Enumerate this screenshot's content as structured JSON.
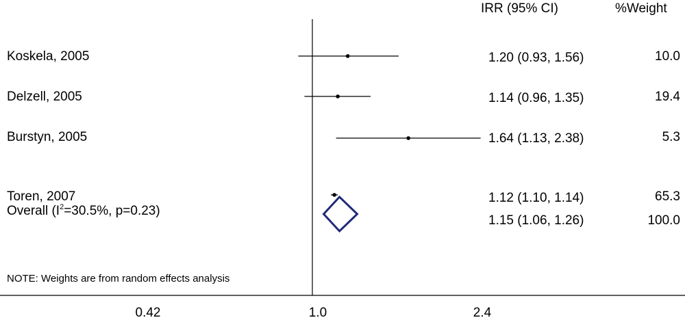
{
  "chart_data": {
    "type": "forest",
    "headers": {
      "effect": "IRR (95% CI)",
      "weight": "%Weight"
    },
    "x_scale": "log",
    "x_ticks": [
      {
        "value": 0.42,
        "label": "0.42"
      },
      {
        "value": 1.0,
        "label": "1.0"
      },
      {
        "value": 2.4,
        "label": "2.4"
      }
    ],
    "null_line": 1.0,
    "studies": [
      {
        "label": "Koskela, 2005",
        "estimate": 1.2,
        "lower": 0.93,
        "upper": 1.56,
        "ci_text": "1.20 (0.93, 1.56)",
        "weight": "10.0"
      },
      {
        "label": "Delzell, 2005",
        "estimate": 1.14,
        "lower": 0.96,
        "upper": 1.35,
        "ci_text": "1.14 (0.96, 1.35)",
        "weight": "19.4"
      },
      {
        "label": "Burstyn, 2005",
        "estimate": 1.64,
        "lower": 1.13,
        "upper": 2.38,
        "ci_text": "1.64 (1.13, 2.38)",
        "weight": "5.3"
      },
      {
        "label": "Toren, 2007",
        "estimate": 1.12,
        "lower": 1.1,
        "upper": 1.14,
        "ci_text": "1.12 (1.10, 1.14)",
        "weight": "65.3"
      }
    ],
    "overall": {
      "label_pre": "Overall (I",
      "label_sup": "2",
      "label_post": "=30.5%, p=0.23)",
      "estimate": 1.15,
      "lower": 1.06,
      "upper": 1.26,
      "ci_text": "1.15 (1.06, 1.26)",
      "weight": "100.0"
    },
    "note": "NOTE: Weights are from random effects analysis",
    "colors": {
      "diamond": "#1f2a78",
      "lines": "#000000"
    }
  }
}
